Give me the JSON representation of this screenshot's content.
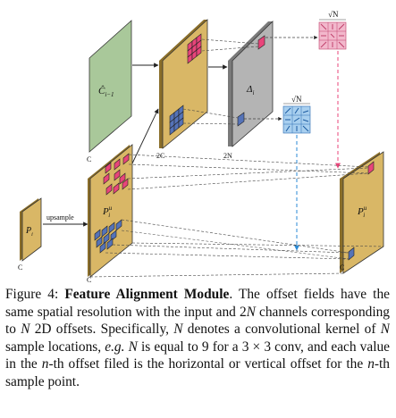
{
  "figure": {
    "labels": {
      "c_prev": "Ĉ",
      "c_prev_sub": "i−1",
      "delta": "Δ",
      "delta_sub": "i",
      "p_i": "P",
      "p_i_sub": "i",
      "p_up": "P",
      "p_up_sup": "u",
      "p_up_sub": "i",
      "p_out": "P",
      "p_out_sup": "u",
      "p_out_sub": "i",
      "upsample": "upsample",
      "sqrt_n_top": "√N",
      "sqrt_n_mid": "√N"
    },
    "channel_labels": {
      "c_first": "C",
      "c_second": "2C",
      "two_n": "2N",
      "c_left": "C",
      "c_bottom": "C",
      "c_right": "C"
    },
    "colors": {
      "green_plane": "#a9c89a",
      "gray_plane": "#b4b4b4",
      "gold_plane": "#d9b766",
      "pink_cell": "#e8457a",
      "blue_cell": "#5573b8",
      "arrow_blue": "#2a8ad6",
      "arrow_pink": "#e8457a"
    }
  },
  "caption": {
    "prefix": "Figure 4: ",
    "title": "Feature Alignment Module",
    "t1": ". The offset fields have the same spatial resolution with the input and 2",
    "t2": " channels corresponding to ",
    "t3": " 2D offsets. Specifically, ",
    "t4": " denotes a convolutional kernel of ",
    "t5": " sample locations, ",
    "eg": "e.g.",
    "t6": " is equal to 9 for a 3 × 3 conv, and each value in the ",
    "t7": "-th offset filed is the horizontal or vertical offset for the ",
    "t8": "-th sample point.",
    "N": "N",
    "n": "n"
  }
}
